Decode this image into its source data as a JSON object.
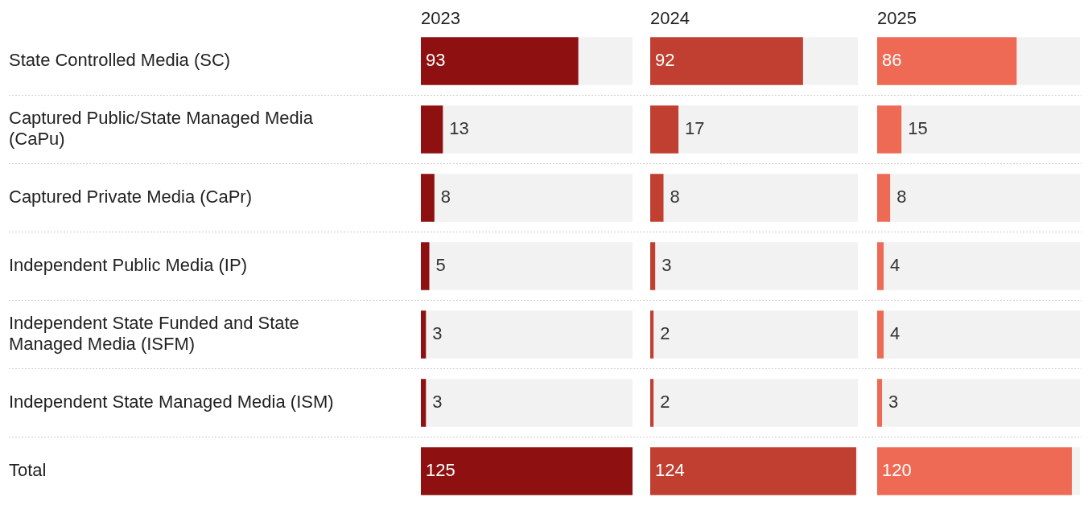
{
  "chart_data": [
    {
      "type": "bar",
      "orientation": "horizontal",
      "title": "2023",
      "categories": [
        "State Controlled Media (SC)",
        "Captured Public/State Managed Media (CaPu)",
        "Captured Private Media (CaPr)",
        "Independent Public Media (IP)",
        "Independent State Funded and State Managed Media (ISFM)",
        "Independent State Managed Media (ISM)",
        "Total"
      ],
      "values": [
        93,
        13,
        8,
        5,
        3,
        3,
        125
      ],
      "color": "#8f1010",
      "xlim": [
        0,
        125
      ],
      "data_labels": true,
      "tick_labels": "y"
    },
    {
      "type": "bar",
      "orientation": "horizontal",
      "title": "2024",
      "categories": [
        null,
        null,
        null,
        null,
        null,
        null,
        null
      ],
      "values": [
        92,
        17,
        8,
        3,
        2,
        2,
        124
      ],
      "color": "#c03f30",
      "xlim": [
        0,
        125
      ],
      "data_labels": true,
      "tick_labels": false
    },
    {
      "type": "bar",
      "orientation": "horizontal",
      "title": "2025",
      "categories": [
        null,
        null,
        null,
        null,
        null,
        null,
        null
      ],
      "values": [
        86,
        15,
        8,
        4,
        4,
        3,
        120
      ],
      "color": "#ef6a55",
      "xlim": [
        0,
        125
      ],
      "data_labels": true,
      "tick_labels": false
    }
  ]
}
